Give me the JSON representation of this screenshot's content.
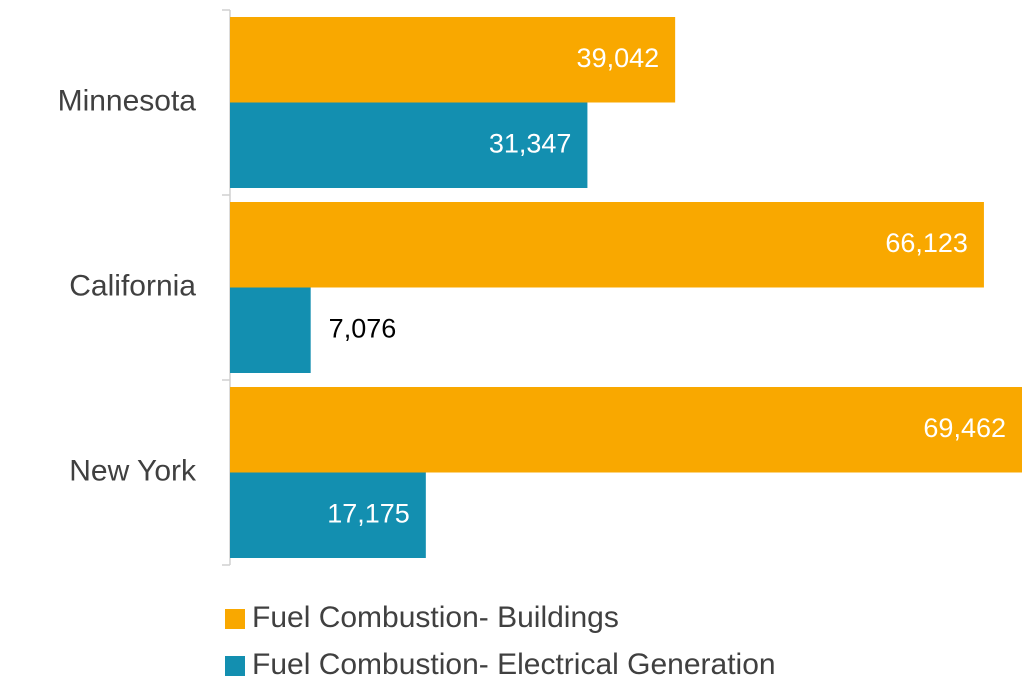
{
  "chart_data": {
    "type": "barh",
    "categories": [
      "Minnesota",
      "California",
      "New York"
    ],
    "series": [
      {
        "name": "Fuel Combustion- Buildings",
        "color": "#F9A800",
        "values": [
          39042,
          66123,
          69462
        ],
        "value_labels": [
          "39,042",
          "66,123",
          "69,462"
        ]
      },
      {
        "name": "Fuel Combustion- Electrical Generation",
        "color": "#138FB0",
        "values": [
          31347,
          7076,
          17175
        ],
        "value_labels": [
          "31,347",
          "7,076",
          "17,175"
        ]
      }
    ]
  }
}
